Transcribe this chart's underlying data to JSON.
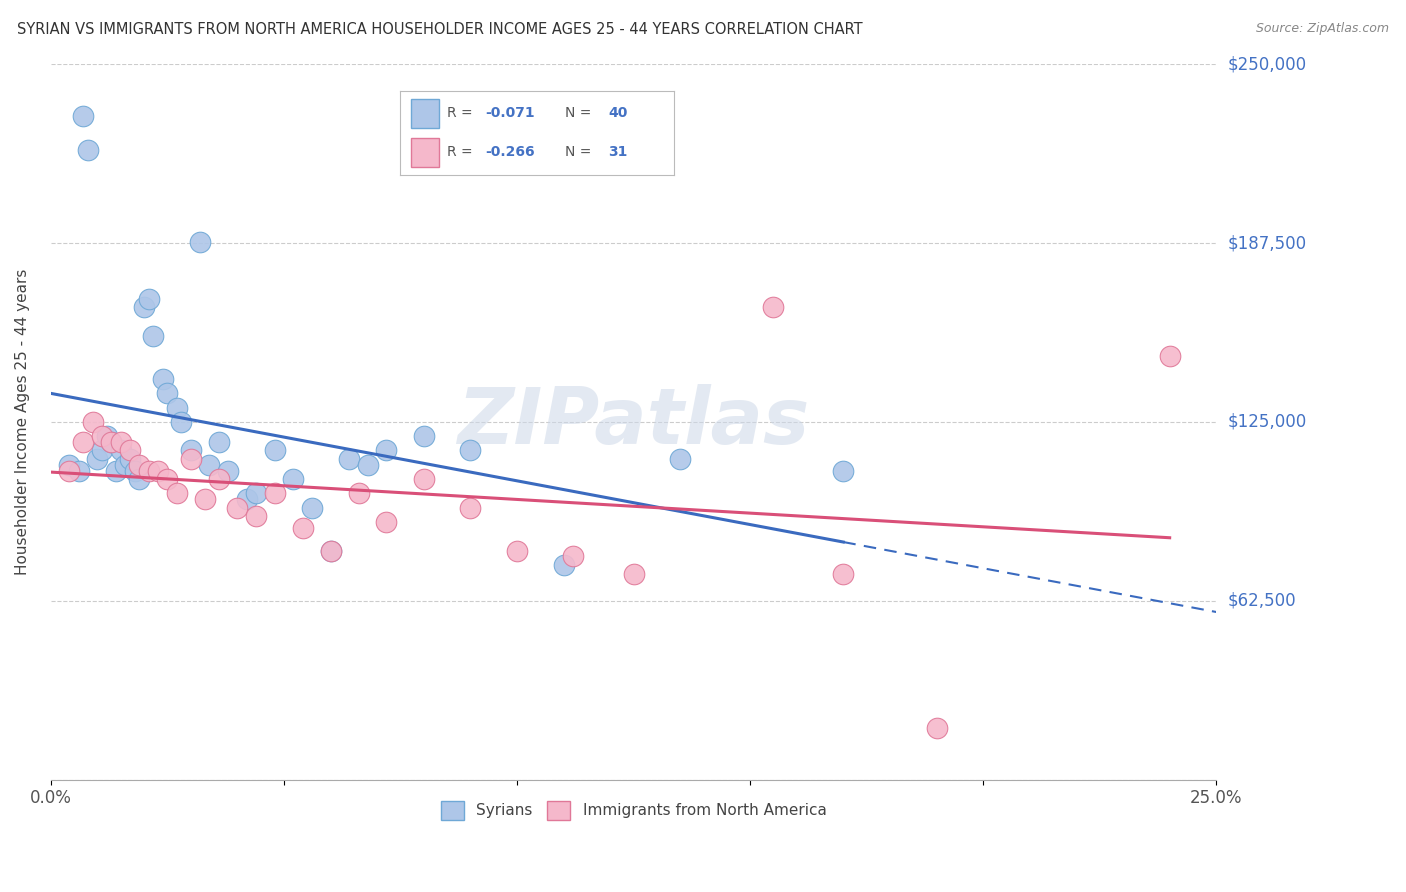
{
  "title": "SYRIAN VS IMMIGRANTS FROM NORTH AMERICA HOUSEHOLDER INCOME AGES 25 - 44 YEARS CORRELATION CHART",
  "source": "Source: ZipAtlas.com",
  "ylabel": "Householder Income Ages 25 - 44 years",
  "xlim": [
    0.0,
    0.25
  ],
  "ylim": [
    0,
    250000
  ],
  "yticks": [
    0,
    62500,
    125000,
    187500,
    250000
  ],
  "ytick_labels": [
    "",
    "$62,500",
    "$125,000",
    "$187,500",
    "$250,000"
  ],
  "xticks": [
    0.0,
    0.05,
    0.1,
    0.15,
    0.2,
    0.25
  ],
  "xtick_labels": [
    "0.0%",
    "",
    "",
    "",
    "",
    "25.0%"
  ],
  "series1_color": "#aec6e8",
  "series2_color": "#f5b8cb",
  "series1_edge": "#6fa8d6",
  "series2_edge": "#e07898",
  "line1_color": "#3a6abf",
  "line2_color": "#d94f78",
  "watermark": "ZIPatlas",
  "legend_r1": "-0.071",
  "legend_n1": "40",
  "legend_r2": "-0.266",
  "legend_n2": "31",
  "syrian_x": [
    0.004,
    0.006,
    0.007,
    0.008,
    0.01,
    0.011,
    0.012,
    0.013,
    0.014,
    0.015,
    0.016,
    0.017,
    0.018,
    0.019,
    0.02,
    0.021,
    0.022,
    0.024,
    0.025,
    0.027,
    0.028,
    0.03,
    0.032,
    0.034,
    0.036,
    0.038,
    0.042,
    0.044,
    0.048,
    0.052,
    0.056,
    0.06,
    0.064,
    0.068,
    0.072,
    0.08,
    0.09,
    0.11,
    0.135,
    0.17
  ],
  "syrian_y": [
    110000,
    108000,
    232000,
    220000,
    112000,
    115000,
    120000,
    118000,
    108000,
    115000,
    110000,
    112000,
    108000,
    105000,
    165000,
    168000,
    155000,
    140000,
    135000,
    130000,
    125000,
    115000,
    188000,
    110000,
    118000,
    108000,
    98000,
    100000,
    115000,
    105000,
    95000,
    80000,
    112000,
    110000,
    115000,
    120000,
    115000,
    75000,
    112000,
    108000
  ],
  "na_x": [
    0.004,
    0.007,
    0.009,
    0.011,
    0.013,
    0.015,
    0.017,
    0.019,
    0.021,
    0.023,
    0.025,
    0.027,
    0.03,
    0.033,
    0.036,
    0.04,
    0.044,
    0.048,
    0.054,
    0.06,
    0.066,
    0.072,
    0.08,
    0.09,
    0.1,
    0.112,
    0.125,
    0.155,
    0.17,
    0.19,
    0.24
  ],
  "na_y": [
    108000,
    118000,
    125000,
    120000,
    118000,
    118000,
    115000,
    110000,
    108000,
    108000,
    105000,
    100000,
    112000,
    98000,
    105000,
    95000,
    92000,
    100000,
    88000,
    80000,
    100000,
    90000,
    105000,
    95000,
    80000,
    78000,
    72000,
    165000,
    72000,
    18000,
    148000
  ]
}
